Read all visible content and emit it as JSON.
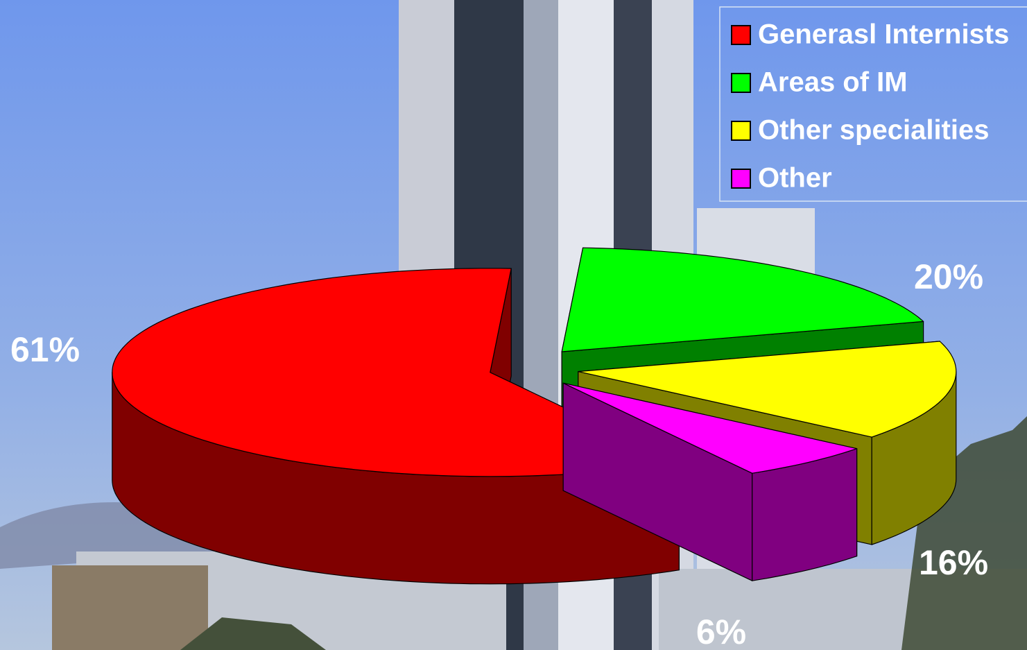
{
  "chart_data": {
    "type": "pie",
    "categories": [
      "Generasl Internists",
      "Areas of IM",
      "Other specialities",
      "Other"
    ],
    "values": [
      61,
      20,
      16,
      6
    ],
    "value_labels": [
      "61%",
      "20%",
      "16%",
      "6%"
    ],
    "colors": [
      "#ff0000",
      "#00ff00",
      "#ffff00",
      "#ff00ff"
    ]
  }
}
